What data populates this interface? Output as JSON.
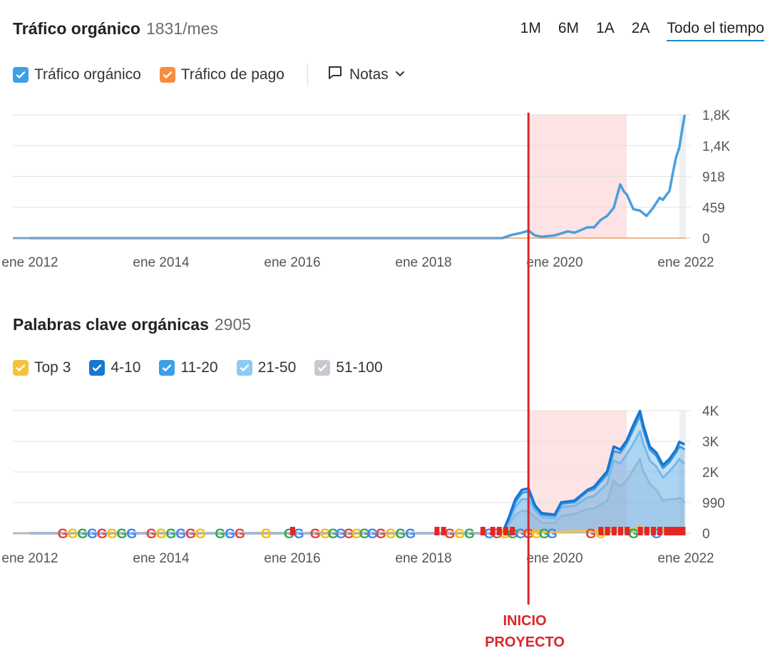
{
  "header": {
    "title": "Tráfico orgánico",
    "title_value": "1831/mes",
    "periods": [
      "1M",
      "6M",
      "1A",
      "2A",
      "Todo el tiempo"
    ],
    "active_period": "Todo el tiempo"
  },
  "legend_top": {
    "items": [
      {
        "label": "Tráfico orgánico",
        "color": "#3aa0e8"
      },
      {
        "label": "Tráfico de pago",
        "color": "#f58d3f"
      }
    ],
    "notes_label": "Notas"
  },
  "section2": {
    "title": "Palabras clave orgánicas",
    "title_value": "2905"
  },
  "legend_bottom": {
    "items": [
      {
        "label": "Top 3",
        "color": "#f7c23b"
      },
      {
        "label": "4-10",
        "color": "#1976d2"
      },
      {
        "label": "11-20",
        "color": "#3aa0e8"
      },
      {
        "label": "21-50",
        "color": "#8dcaf5"
      },
      {
        "label": "51-100",
        "color": "#c8c8d0"
      }
    ]
  },
  "annotation": {
    "line1": "INICIO",
    "line2": "PROYECTO",
    "date": 2019.6,
    "color": "#d9262b",
    "highlight_range": [
      2019.6,
      2021.1
    ],
    "highlight_color": "#fde3e3"
  },
  "chart_data": [
    {
      "type": "line",
      "title": "Tráfico orgánico",
      "x_tick_labels": [
        "ene 2012",
        "ene 2014",
        "ene 2016",
        "ene 2018",
        "ene 2020",
        "ene 2022"
      ],
      "x_ticks": [
        2012,
        2014,
        2016,
        2018,
        2020,
        2022
      ],
      "xlim": [
        2012,
        2022
      ],
      "y_tick_labels": [
        "0",
        "459",
        "918",
        "1,4K",
        "1,8K"
      ],
      "y_ticks": [
        0,
        459,
        918,
        1377,
        1836
      ],
      "ylim": [
        0,
        1836
      ],
      "grid": true,
      "series": [
        {
          "name": "Tráfico orgánico",
          "color": "#4a9fde",
          "x": [
            2012,
            2019.2,
            2019.35,
            2019.5,
            2019.6,
            2019.7,
            2019.8,
            2020,
            2020.1,
            2020.2,
            2020.3,
            2020.4,
            2020.5,
            2020.6,
            2020.7,
            2020.8,
            2020.9,
            2021.0,
            2021.05,
            2021.1,
            2021.2,
            2021.3,
            2021.4,
            2021.5,
            2021.6,
            2021.65,
            2021.7,
            2021.75,
            2021.8,
            2021.85,
            2021.9,
            2021.95,
            2021.98
          ],
          "y": [
            0,
            0,
            50,
            80,
            110,
            40,
            20,
            40,
            70,
            100,
            80,
            120,
            160,
            160,
            270,
            330,
            450,
            800,
            700,
            650,
            430,
            410,
            330,
            450,
            600,
            570,
            640,
            700,
            960,
            1200,
            1350,
            1650,
            1820
          ]
        },
        {
          "name": "Tráfico de pago",
          "color": "#f58d3f",
          "x": [
            2012,
            2022
          ],
          "y": [
            0,
            0
          ]
        }
      ]
    },
    {
      "type": "area",
      "title": "Palabras clave orgánicas",
      "x_tick_labels": [
        "ene 2012",
        "ene 2014",
        "ene 2016",
        "ene 2018",
        "ene 2020",
        "ene 2022"
      ],
      "x_ticks": [
        2012,
        2014,
        2016,
        2018,
        2020,
        2022
      ],
      "xlim": [
        2012,
        2022
      ],
      "y_tick_labels": [
        "0",
        "990",
        "2K",
        "3K",
        "4K"
      ],
      "y_ticks": [
        0,
        990,
        1980,
        2970,
        3960
      ],
      "ylim": [
        0,
        3960
      ],
      "grid": true,
      "x": [
        2012,
        2019.2,
        2019.3,
        2019.4,
        2019.5,
        2019.6,
        2019.7,
        2019.8,
        2020,
        2020.1,
        2020.3,
        2020.5,
        2020.6,
        2020.8,
        2020.9,
        2021.0,
        2021.1,
        2021.2,
        2021.3,
        2021.35,
        2021.45,
        2021.55,
        2021.65,
        2021.75,
        2021.85,
        2021.9,
        2021.95,
        2021.98
      ],
      "series": [
        {
          "name": "Top 3",
          "color": "#f7c23b",
          "values": [
            0,
            0,
            20,
            40,
            50,
            60,
            30,
            20,
            30,
            40,
            60,
            80,
            80,
            110,
            130,
            150,
            130,
            160,
            200,
            180,
            120,
            100,
            90,
            110,
            120,
            130,
            120,
            110
          ]
        },
        {
          "name": "4-10",
          "color": "#1976d2",
          "values": [
            0,
            0,
            500,
            1100,
            1400,
            1450,
            900,
            650,
            600,
            1000,
            1050,
            1400,
            1500,
            2000,
            2800,
            2700,
            3000,
            3500,
            3950,
            3500,
            2800,
            2600,
            2200,
            2400,
            2700,
            2950,
            2900,
            2870
          ]
        },
        {
          "name": "11-20",
          "color": "#3aa0e8",
          "values": [
            0,
            0,
            450,
            1000,
            1300,
            1350,
            850,
            600,
            560,
            950,
            1000,
            1350,
            1420,
            1900,
            2650,
            2600,
            2900,
            3350,
            3800,
            3350,
            2700,
            2500,
            2100,
            2300,
            2600,
            2800,
            2750,
            2700
          ]
        },
        {
          "name": "21-50",
          "color": "#8dcaf5",
          "values": [
            0,
            0,
            380,
            850,
            1100,
            1100,
            750,
            520,
            480,
            850,
            880,
            1150,
            1200,
            1600,
            2350,
            2250,
            2550,
            2900,
            3300,
            2900,
            2350,
            2150,
            1800,
            2000,
            2250,
            2400,
            2300,
            2250
          ]
        },
        {
          "name": "51-100",
          "color": "#c8c8d0",
          "values": [
            0,
            0,
            280,
            600,
            720,
            720,
            500,
            350,
            320,
            560,
            620,
            780,
            800,
            1050,
            1700,
            1500,
            1700,
            2050,
            2400,
            2000,
            1600,
            1400,
            1050,
            1100,
            1100,
            1150,
            1100,
            970
          ]
        }
      ]
    }
  ]
}
